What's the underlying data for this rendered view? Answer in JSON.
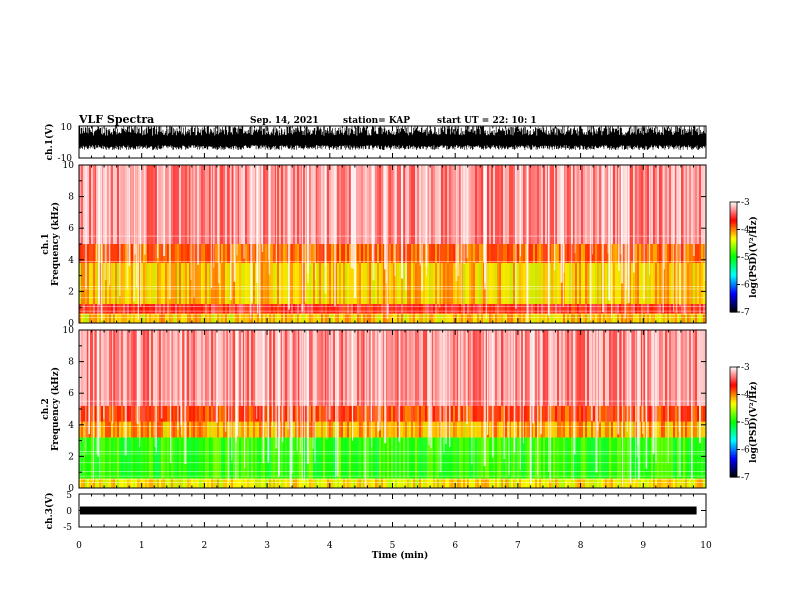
{
  "header": {
    "title": "VLF Spectra",
    "date": "Sep. 14, 2021",
    "station": "station= KAP",
    "start": "start  UT =   22: 10: 1"
  },
  "chart_data": [
    {
      "type": "line",
      "name": "ch1-waveform",
      "ylabel": "ch.1(V)",
      "ylim": [
        -10,
        10
      ],
      "yticks": [
        "10",
        "-10"
      ],
      "xlim": [
        0,
        10
      ],
      "color": "#000000"
    },
    {
      "type": "heatmap",
      "name": "ch1-spectrogram",
      "ylabel": "ch.1\nFrequency  (kHz)",
      "ylabel_lines": [
        "ch.1",
        "Frequency  (kHz)"
      ],
      "ylim": [
        0,
        10
      ],
      "yticks": [
        "0",
        "2",
        "4",
        "6",
        "8",
        "10"
      ],
      "xlim": [
        0,
        10
      ],
      "bands": [
        {
          "from_khz": 0,
          "to_khz": 0.6,
          "level": -4.2
        },
        {
          "from_khz": 0.6,
          "to_khz": 1.2,
          "level": -3.6
        },
        {
          "from_khz": 1.2,
          "to_khz": 3.8,
          "level": -4.2
        },
        {
          "from_khz": 3.8,
          "to_khz": 5.0,
          "level": -3.9
        },
        {
          "from_khz": 5.0,
          "to_khz": 10,
          "level": -3.3
        }
      ],
      "colorbar": {
        "label": "log(PSD)(V²/Hz)",
        "range": [
          -7,
          -3
        ],
        "ticks": [
          "-3",
          "-4",
          "-5",
          "-6",
          "-7"
        ],
        "colors": [
          "#ffffff",
          "#ff0000",
          "#ffff00",
          "#00ff00",
          "#00ffff",
          "#0000ff",
          "#000000"
        ]
      }
    },
    {
      "type": "heatmap",
      "name": "ch2-spectrogram",
      "ylabel": "ch.2\nFrequency  (kHz)",
      "ylabel_lines": [
        "ch.2",
        "Frequency  (kHz)"
      ],
      "ylim": [
        0,
        10
      ],
      "yticks": [
        "0",
        "2",
        "4",
        "6",
        "8",
        "10"
      ],
      "xlim": [
        0,
        10
      ],
      "bands": [
        {
          "from_khz": 0,
          "to_khz": 0.6,
          "level": -4.3
        },
        {
          "from_khz": 0.6,
          "to_khz": 3.2,
          "level": -4.9
        },
        {
          "from_khz": 3.2,
          "to_khz": 4.2,
          "level": -4.1
        },
        {
          "from_khz": 4.2,
          "to_khz": 5.2,
          "level": -3.8
        },
        {
          "from_khz": 5.2,
          "to_khz": 10,
          "level": -3.3
        }
      ],
      "colorbar": {
        "label": "log(PSD)(V²/Hz)",
        "range": [
          -7,
          -3
        ],
        "ticks": [
          "-3",
          "-4",
          "-5",
          "-6",
          "-7"
        ],
        "colors": [
          "#ffffff",
          "#ff0000",
          "#ffff00",
          "#00ff00",
          "#00ffff",
          "#0000ff",
          "#000000"
        ]
      }
    },
    {
      "type": "line",
      "name": "ch3-waveform",
      "ylabel": "ch.3(V)",
      "ylim": [
        -5,
        5
      ],
      "yticks": [
        "5",
        "0",
        "-5"
      ],
      "xlim": [
        0,
        10
      ],
      "level": [
        -0.6,
        0.6
      ],
      "color": "#000000",
      "xlabel": "Time  (min)",
      "xticks": [
        "0",
        "1",
        "2",
        "3",
        "4",
        "5",
        "6",
        "7",
        "8",
        "9",
        "10"
      ]
    }
  ]
}
